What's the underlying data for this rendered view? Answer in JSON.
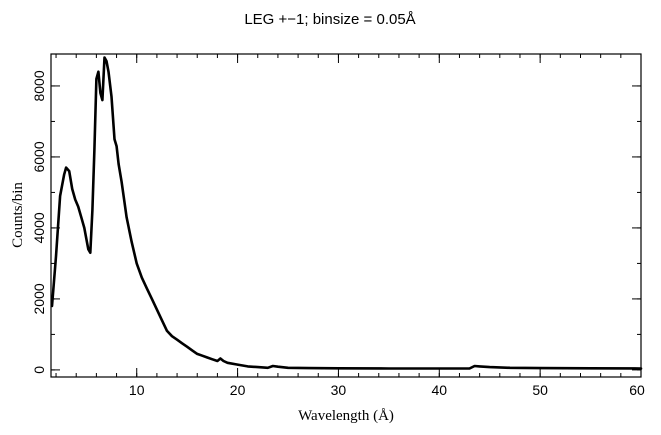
{
  "chart_data": {
    "type": "line",
    "title": "LEG +−1; binsize = 0.05Å",
    "xlabel": "Wavelength (Å)",
    "ylabel": "Counts/bin",
    "xlim": [
      1.5,
      60
    ],
    "ylim": [
      -200,
      8900
    ],
    "grid": false,
    "x_ticks": [
      10,
      20,
      30,
      40,
      50,
      60
    ],
    "y_ticks": [
      0,
      2000,
      4000,
      6000,
      8000
    ],
    "x_minor_step": 2,
    "y_minor_step": 1000,
    "series": [
      {
        "x": [
          1.6,
          2.0,
          2.4,
          2.8,
          3.0,
          3.3,
          3.6,
          3.9,
          4.2,
          4.5,
          4.8,
          5.0,
          5.2,
          5.4,
          5.6,
          5.8,
          6.0,
          6.2,
          6.4,
          6.6,
          6.8,
          7.0,
          7.2,
          7.5,
          7.8,
          8.0,
          8.2,
          8.5,
          8.8,
          9.0,
          9.5,
          10.0,
          10.5,
          11.0,
          11.5,
          12.0,
          12.5,
          13.0,
          13.5,
          14.0,
          14.5,
          15.0,
          15.5,
          16.0,
          16.5,
          17.0,
          17.5,
          18.0,
          18.3,
          18.6,
          19.0,
          20.0,
          21.0,
          22.0,
          23.0,
          23.5,
          24.0,
          25.0,
          27.0,
          30.0,
          35.0,
          40.0,
          43.0,
          43.5,
          44.0,
          45.0,
          47.0,
          50.0,
          55.0,
          60.0
        ],
        "y": [
          1800,
          3200,
          4900,
          5500,
          5700,
          5600,
          5100,
          4800,
          4600,
          4300,
          4000,
          3700,
          3400,
          3300,
          4500,
          6200,
          8200,
          8400,
          7800,
          7600,
          8800,
          8700,
          8400,
          7700,
          6500,
          6300,
          5800,
          5300,
          4700,
          4300,
          3600,
          3000,
          2600,
          2300,
          2000,
          1700,
          1400,
          1100,
          950,
          850,
          750,
          650,
          550,
          450,
          400,
          350,
          300,
          250,
          320,
          250,
          200,
          150,
          100,
          80,
          60,
          110,
          90,
          60,
          50,
          45,
          40,
          40,
          40,
          110,
          100,
          80,
          60,
          50,
          45,
          40
        ]
      }
    ]
  }
}
